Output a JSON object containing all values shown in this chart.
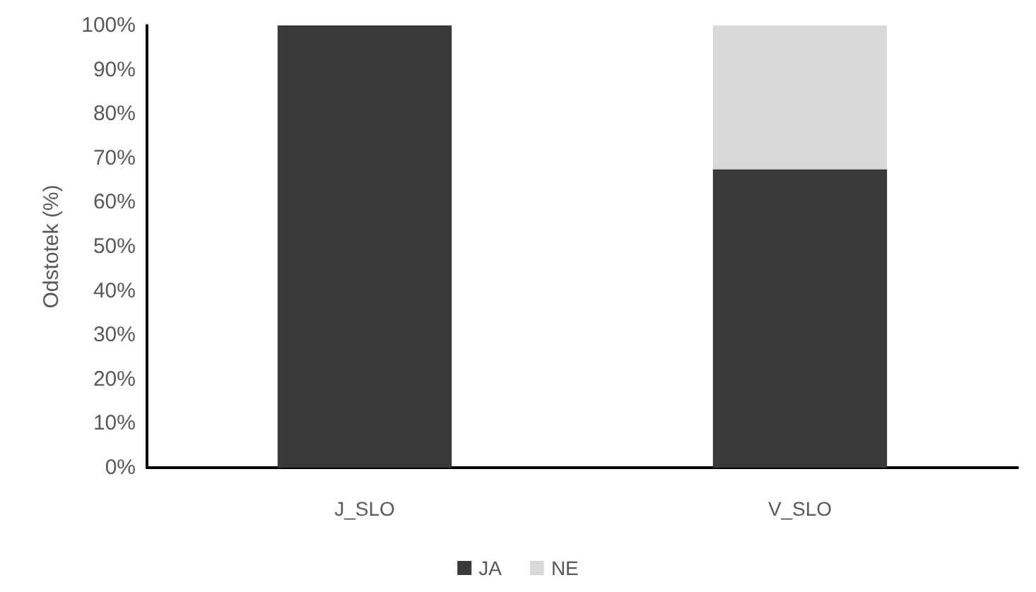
{
  "chart_data": {
    "type": "bar",
    "stacked": true,
    "ylabel": "Odstotek (%)",
    "categories": [
      "J_SLO",
      "V_SLO"
    ],
    "series": [
      {
        "name": "JA",
        "color": "#3b3a38",
        "values": [
          100,
          67.5
        ]
      },
      {
        "name": "NE",
        "color": "#d9d9d9",
        "values": [
          0,
          32.5
        ]
      }
    ],
    "ylim": [
      0,
      100
    ],
    "yticks": [
      {
        "value": 0,
        "label": "0%"
      },
      {
        "value": 10,
        "label": "10%"
      },
      {
        "value": 20,
        "label": "20%"
      },
      {
        "value": 30,
        "label": "30%"
      },
      {
        "value": 40,
        "label": "40%"
      },
      {
        "value": 50,
        "label": "50%"
      },
      {
        "value": 60,
        "label": "60%"
      },
      {
        "value": 70,
        "label": "70%"
      },
      {
        "value": 80,
        "label": "80%"
      },
      {
        "value": 90,
        "label": "90%"
      },
      {
        "value": 100,
        "label": "100%"
      }
    ],
    "grid": false,
    "legend": "bottom"
  }
}
